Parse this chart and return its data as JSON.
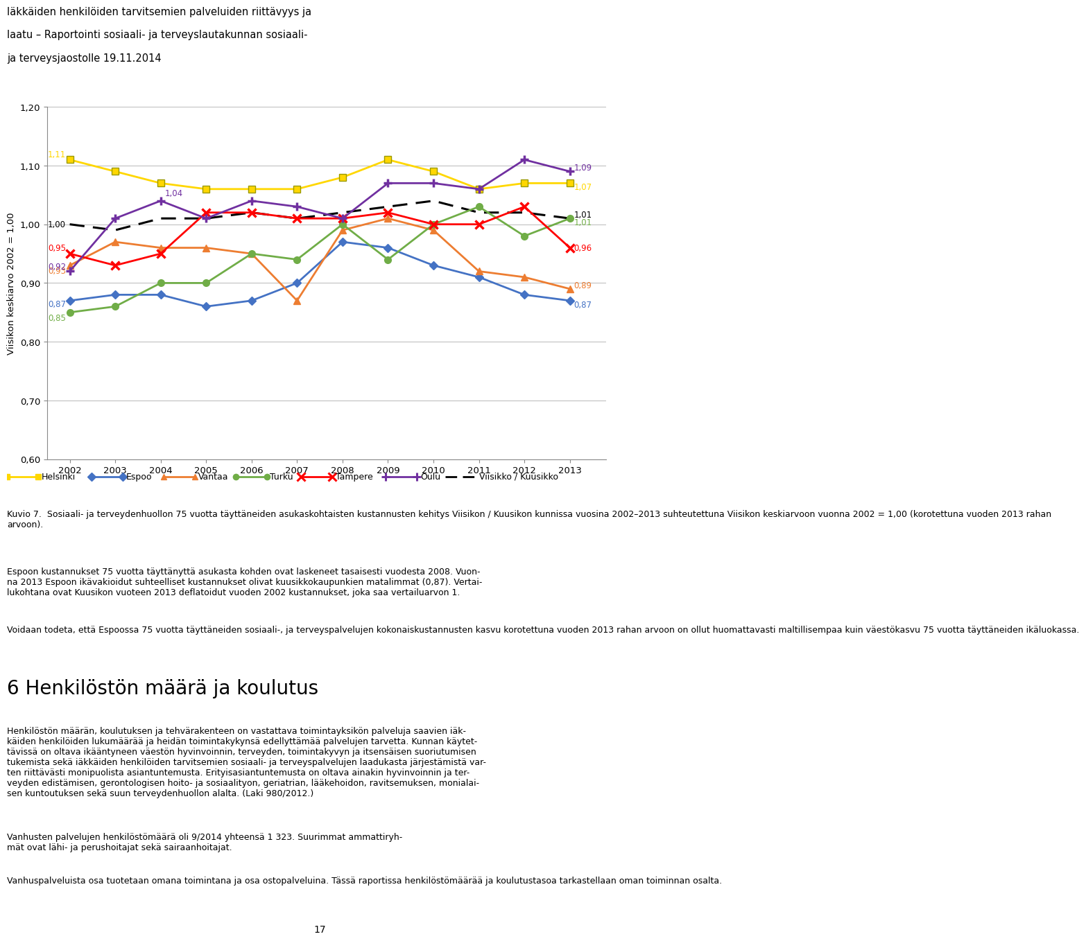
{
  "years": [
    2002,
    2003,
    2004,
    2005,
    2006,
    2007,
    2008,
    2009,
    2010,
    2011,
    2012,
    2013
  ],
  "helsinki": [
    1.11,
    1.09,
    1.07,
    1.06,
    1.06,
    1.06,
    1.08,
    1.11,
    1.09,
    1.06,
    1.07,
    1.07
  ],
  "espoo": [
    0.87,
    0.88,
    0.88,
    0.86,
    0.87,
    0.9,
    0.97,
    0.96,
    0.93,
    0.91,
    0.88,
    0.87
  ],
  "vantaa": [
    0.93,
    0.97,
    0.96,
    0.96,
    0.95,
    0.87,
    0.99,
    1.01,
    0.99,
    0.92,
    0.91,
    0.89
  ],
  "turku": [
    0.85,
    0.86,
    0.9,
    0.9,
    0.95,
    0.94,
    1.0,
    0.94,
    1.0,
    1.03,
    0.98,
    1.01
  ],
  "tampere": [
    0.95,
    0.93,
    0.95,
    1.02,
    1.02,
    1.01,
    1.01,
    1.02,
    1.0,
    1.0,
    1.03,
    0.96
  ],
  "oulu": [
    0.92,
    1.01,
    1.04,
    1.01,
    1.04,
    1.03,
    1.01,
    1.07,
    1.07,
    1.06,
    1.11,
    1.09
  ],
  "viisikko": [
    1.0,
    0.99,
    1.01,
    1.01,
    1.02,
    1.01,
    1.02,
    1.03,
    1.04,
    1.02,
    1.02,
    1.01
  ],
  "colors": {
    "helsinki": "#FFD700",
    "espoo": "#4472C4",
    "vantaa": "#ED7D31",
    "turku": "#70AD47",
    "tampere": "#FF0000",
    "oulu": "#7030A0",
    "viisikko": "#000000"
  },
  "ylabel": "Viisikon keskiarvo 2002 = 1,00",
  "ylim": [
    0.6,
    1.2
  ],
  "yticks": [
    0.6,
    0.7,
    0.8,
    0.9,
    1.0,
    1.1,
    1.2
  ],
  "header_line1": "Iäkkäiden henkilöiden tarvitsemien palveluiden riittävyys ja",
  "header_line2": "laatu – Raportointi sosiaali- ja terveyslautakunnan sosiaali-",
  "header_line3": "ja terveysjaostolle 19.11.2014",
  "caption": "Kuvio 7.  Sosiaali- ja terveydenhuollon 75 vuotta täyttäneiden asukaskohtaisten kustannusten kehitys Viisikon / Kuusikon kunnissa vuosina 2002–2013 suhteutettuna Viisikon keskiarvoon vuonna 2002 = 1,00 (korotettuna vuoden 2013 rahan arvoon).",
  "body1": "Espoon kustannukset 75 vuotta täyttänyttä asukasta kohden ovat laskeneet tasaisesti vuodesta 2008. Vuon-\nna 2013 Espoon ikävakioidut suhteelliset kustannukset olivat kuusikkokaupunkien matalimmat (0,87). Vertai-\nlukohtana ovat Kuusikon vuoteen 2013 deflatoidut vuoden 2002 kustannukset, joka saa vertailuarvon 1.",
  "body2": "Voidaan todeta, että Espoossa 75 vuotta täyttäneiden sosiaali-, ja terveyspalvelujen kokonaiskustannusten kasvu korotettuna vuoden 2013 rahan arvoon on ollut huomattavasti maltillisempaa kuin väestökasvu 75 vuotta täyttäneiden ikäluokassa.",
  "section_title": "6 Henkilöstön määrä ja koulutus",
  "body3": "Henkilöstön määrän, koulutuksen ja tehvärakenteen on vastattava toimintayksikön palveluja saavien iäk-\nkäiden henkilöiden lukumäärää ja heidän toimintakykynsä edellyttämää palvelujen tarvetta. Kunnan käytet-\ntävissä on oltava ikääntyneen väestön hyvinvoinnin, terveyden, toimintakyvyn ja itsensäisen suoriutumisen\ntukemista sekä iäkkäiden henkilöiden tarvitsemien sosiaali- ja terveyspalvelujen laadukasta järjestämistä var-\nten riittävästi monipuolista asiantuntemusta. Erityisasiantuntemusta on oltava ainakin hyvinvoinnin ja ter-\nveyden edistämisen, gerontologisen hoito- ja sosiaalityon, geriatrian, lääkehoidon, ravitsemuksen, monialai-\nsen kuntoutuksen sekä suun terveydenhuollon alalta. (Laki 980/2012.)",
  "body4": "Vanhusten palvelujen henkilöstömäärä oli 9/2014 yhteensä 1 323. Suurimmat ammattiryh-\nmät ovat lähi- ja perushoitajat sekä sairaanhoitajat.",
  "body5": "Vanhuspalveluista osa tuotetaan omana toimintana ja osa ostopalveluina. Tässä raportissa henkilöstömäärää ja koulutustasoa tarkastellaan oman toiminnan osalta.",
  "page_number": "17"
}
